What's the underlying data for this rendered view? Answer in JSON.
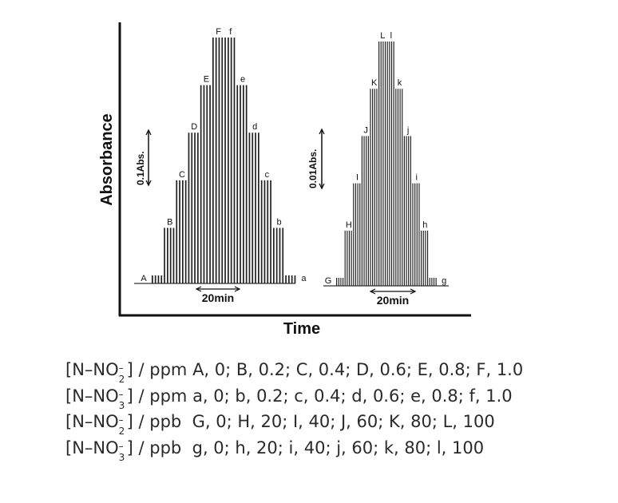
{
  "chart_data": {
    "type": "line",
    "xlabel": "Time",
    "ylabel": "Absorbance",
    "panels": [
      {
        "name": "ppm",
        "scale_bar": "0.1Abs.",
        "time_bar": "20min",
        "groups": [
          {
            "label": "A",
            "height": 0.0
          },
          {
            "label": "B",
            "height": 0.2
          },
          {
            "label": "C",
            "height": 0.4
          },
          {
            "label": "D",
            "height": 0.6
          },
          {
            "label": "E",
            "height": 0.8
          },
          {
            "label": "F",
            "height": 1.0
          },
          {
            "label": "f",
            "height": 1.0
          },
          {
            "label": "e",
            "height": 0.8
          },
          {
            "label": "d",
            "height": 0.6
          },
          {
            "label": "c",
            "height": 0.4
          },
          {
            "label": "b",
            "height": 0.2
          },
          {
            "label": "a",
            "height": 0.0
          }
        ]
      },
      {
        "name": "ppb",
        "scale_bar": "0.01Abs.",
        "time_bar": "20min",
        "groups": [
          {
            "label": "G",
            "height": 0.0
          },
          {
            "label": "H",
            "height": 0.2
          },
          {
            "label": "I",
            "height": 0.4
          },
          {
            "label": "J",
            "height": 0.6
          },
          {
            "label": "K",
            "height": 0.8
          },
          {
            "label": "L",
            "height": 1.0
          },
          {
            "label": "l",
            "height": 1.0
          },
          {
            "label": "k",
            "height": 0.8
          },
          {
            "label": "j",
            "height": 0.6
          },
          {
            "label": "i",
            "height": 0.4
          },
          {
            "label": "h",
            "height": 0.2
          },
          {
            "label": "g",
            "height": 0.0
          }
        ]
      }
    ]
  },
  "legend": [
    {
      "species": "N–NO",
      "sub": "2",
      "sup": "–",
      "unit": "] / ppm ",
      "values": "A, 0; B, 0.2; C, 0.4; D, 0.6; E, 0.8; F, 1.0"
    },
    {
      "species": "N–NO",
      "sub": "3",
      "sup": "–",
      "unit": "] / ppm ",
      "values": "a, 0; b, 0.2; c, 0.4; d, 0.6; e, 0.8; f, 1.0"
    },
    {
      "species": "N–NO",
      "sub": "2",
      "sup": "–",
      "unit": "] / ppb  ",
      "values": "G, 0; H, 20; I, 40; J, 60; K, 80; L, 100"
    },
    {
      "species": "N–NO",
      "sub": "3",
      "sup": "–",
      "unit": "] / ppb  ",
      "values": "g, 0; h, 20; i, 40; j, 60; k, 80; l, 100"
    }
  ]
}
